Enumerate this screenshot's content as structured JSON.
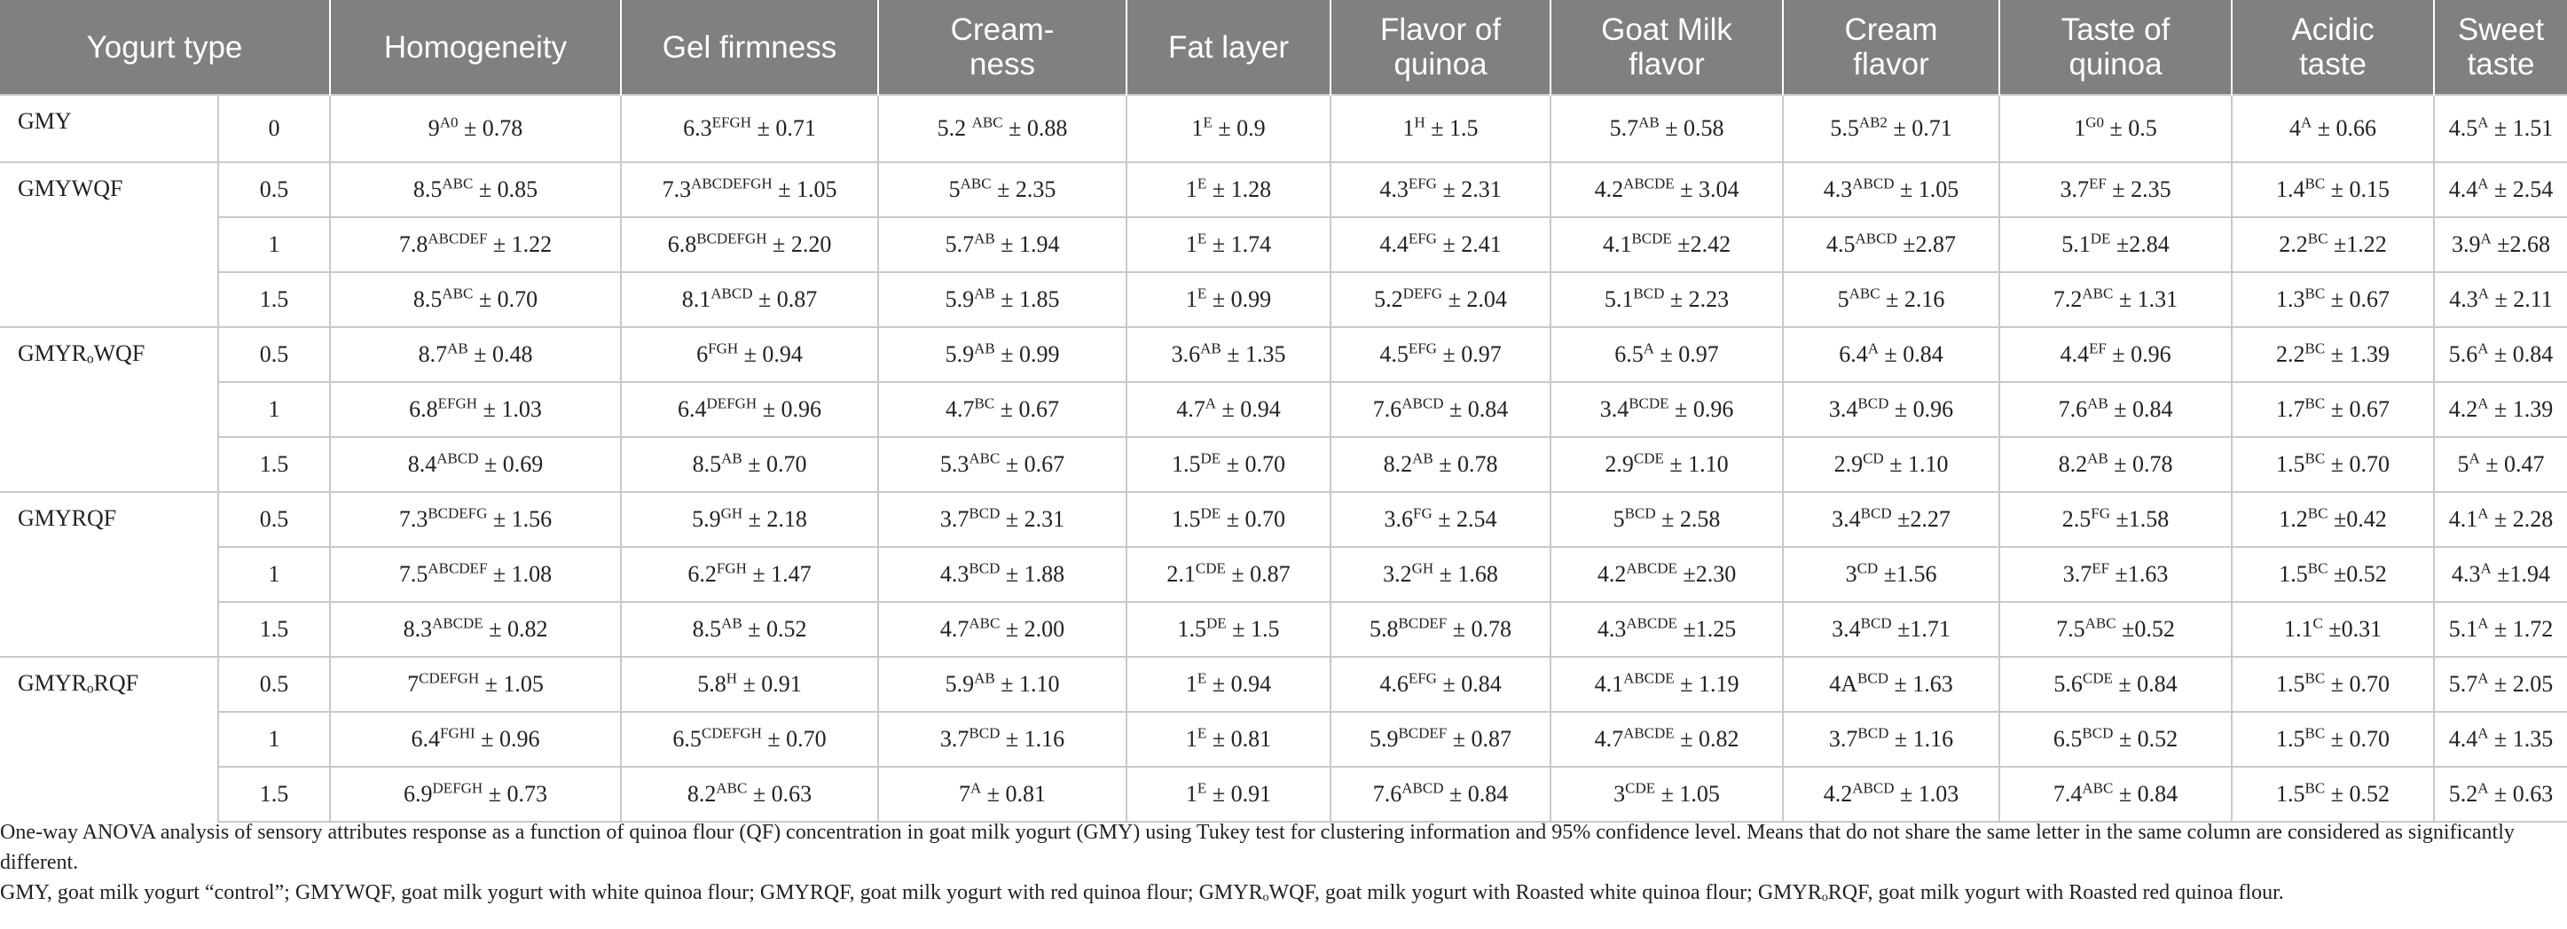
{
  "columns": [
    "Yogurt type",
    "Homogeneity",
    "Gel firmness",
    "Cream-\nness",
    "Fat layer",
    "Flavor of\nquinoa",
    "Goat Milk\nflavor",
    "Cream\nflavor",
    "Taste of\nquinoa",
    "Acidic\ntaste",
    "Sweet\ntaste"
  ],
  "groups": [
    {
      "type": "GMY",
      "rows": [
        {
          "conc": "0",
          "cells": [
            [
              "9",
              "A0",
              "± 0.78"
            ],
            [
              "6.3",
              "EFGH",
              "± 0.71"
            ],
            [
              "5.2 ",
              "ABC",
              "± 0.88"
            ],
            [
              "1",
              "E",
              "± 0.9"
            ],
            [
              "1",
              "H",
              "± 1.5"
            ],
            [
              "5.7",
              "AB",
              "± 0.58"
            ],
            [
              "5.5",
              "AB2",
              "± 0.71"
            ],
            [
              "1",
              "G0",
              "± 0.5"
            ],
            [
              "4",
              "A",
              "± 0.66"
            ],
            [
              "4.5",
              "A",
              "± 1.51"
            ]
          ]
        }
      ]
    },
    {
      "type": "GMYWQF",
      "rows": [
        {
          "conc": "0.5",
          "cells": [
            [
              "8.5",
              "ABC",
              "± 0.85"
            ],
            [
              "7.3",
              "ABCDEFGH",
              "± 1.05"
            ],
            [
              "5",
              "ABC",
              "± 2.35"
            ],
            [
              "1",
              "E",
              "± 1.28"
            ],
            [
              "4.3",
              "EFG",
              "± 2.31"
            ],
            [
              "4.2",
              "ABCDE",
              "± 3.04"
            ],
            [
              "4.3",
              "ABCD",
              "± 1.05"
            ],
            [
              "3.7",
              "EF",
              "± 2.35"
            ],
            [
              "1.4",
              "BC",
              "± 0.15"
            ],
            [
              "4.4",
              "A",
              "± 2.54"
            ]
          ]
        },
        {
          "conc": "1",
          "cells": [
            [
              "7.8",
              "ABCDEF",
              "± 1.22"
            ],
            [
              "6.8",
              "BCDEFGH",
              "± 2.20"
            ],
            [
              "5.7",
              "AB",
              "± 1.94"
            ],
            [
              "1",
              "E",
              "± 1.74"
            ],
            [
              "4.4",
              "EFG",
              "± 2.41"
            ],
            [
              "4.1",
              "BCDE",
              "±2.42"
            ],
            [
              "4.5",
              "ABCD",
              "±2.87"
            ],
            [
              "5.1",
              "DE",
              "±2.84"
            ],
            [
              "2.2",
              "BC",
              "±1.22"
            ],
            [
              "3.9",
              "A",
              "±2.68"
            ]
          ]
        },
        {
          "conc": "1.5",
          "cells": [
            [
              "8.5",
              "ABC",
              "± 0.70"
            ],
            [
              "8.1",
              "ABCD",
              "± 0.87"
            ],
            [
              "5.9",
              "AB",
              "± 1.85"
            ],
            [
              "1",
              "E",
              "± 0.99"
            ],
            [
              "5.2",
              "DEFG",
              "± 2.04"
            ],
            [
              "5.1",
              "BCD",
              "± 2.23"
            ],
            [
              "5",
              "ABC",
              "± 2.16"
            ],
            [
              "7.2",
              "ABC",
              "± 1.31"
            ],
            [
              "1.3",
              "BC",
              "± 0.67"
            ],
            [
              "4.3",
              "A",
              "± 2.11"
            ]
          ]
        }
      ]
    },
    {
      "type": "GMYRₒWQF",
      "rows": [
        {
          "conc": "0.5",
          "cells": [
            [
              "8.7",
              "AB",
              "± 0.48"
            ],
            [
              "6",
              "FGH",
              "± 0.94"
            ],
            [
              "5.9",
              "AB",
              "± 0.99"
            ],
            [
              "3.6",
              "AB",
              "± 1.35"
            ],
            [
              "4.5",
              "EFG",
              "± 0.97"
            ],
            [
              "6.5",
              "A",
              "± 0.97"
            ],
            [
              "6.4",
              "A",
              "± 0.84"
            ],
            [
              "4.4",
              "EF",
              "± 0.96"
            ],
            [
              "2.2",
              "BC",
              "± 1.39"
            ],
            [
              "5.6",
              "A",
              "± 0.84"
            ]
          ]
        },
        {
          "conc": "1",
          "cells": [
            [
              "6.8",
              "EFGH",
              "± 1.03"
            ],
            [
              "6.4",
              "DEFGH",
              "± 0.96"
            ],
            [
              "4.7",
              "BC",
              "± 0.67"
            ],
            [
              "4.7",
              "A",
              "± 0.94"
            ],
            [
              "7.6",
              "ABCD",
              "± 0.84"
            ],
            [
              "3.4",
              "BCDE",
              "± 0.96"
            ],
            [
              "3.4",
              "BCD",
              "± 0.96"
            ],
            [
              "7.6",
              "AB",
              "± 0.84"
            ],
            [
              "1.7",
              "BC",
              "± 0.67"
            ],
            [
              "4.2",
              "A",
              "± 1.39"
            ]
          ]
        },
        {
          "conc": "1.5",
          "cells": [
            [
              "8.4",
              "ABCD",
              "± 0.69"
            ],
            [
              "8.5",
              "AB",
              "± 0.70"
            ],
            [
              "5.3",
              "ABC",
              "± 0.67"
            ],
            [
              "1.5",
              "DE",
              "± 0.70"
            ],
            [
              "8.2",
              "AB",
              "± 0.78"
            ],
            [
              "2.9",
              "CDE",
              "± 1.10"
            ],
            [
              "2.9",
              "CD",
              "± 1.10"
            ],
            [
              "8.2",
              "AB",
              "± 0.78"
            ],
            [
              "1.5",
              "BC",
              "± 0.70"
            ],
            [
              "5",
              "A",
              "± 0.47"
            ]
          ]
        }
      ]
    },
    {
      "type": "GMYRQF",
      "rows": [
        {
          "conc": "0.5",
          "cells": [
            [
              "7.3",
              "BCDEFG",
              "± 1.56"
            ],
            [
              "5.9",
              "GH",
              "± 2.18"
            ],
            [
              "3.7",
              "BCD",
              "± 2.31"
            ],
            [
              "1.5",
              "DE",
              "± 0.70"
            ],
            [
              "3.6",
              "FG",
              "± 2.54"
            ],
            [
              "5",
              "BCD",
              "± 2.58"
            ],
            [
              "3.4",
              "BCD",
              "±2.27"
            ],
            [
              "2.5",
              "FG",
              "±1.58"
            ],
            [
              "1.2",
              "BC",
              "±0.42"
            ],
            [
              "4.1",
              "A",
              "± 2.28"
            ]
          ]
        },
        {
          "conc": "1",
          "cells": [
            [
              "7.5",
              "ABCDEF",
              "± 1.08"
            ],
            [
              "6.2",
              "FGH",
              "± 1.47"
            ],
            [
              "4.3",
              "BCD",
              "± 1.88"
            ],
            [
              "2.1",
              "CDE",
              "± 0.87"
            ],
            [
              "3.2",
              "GH",
              "± 1.68"
            ],
            [
              "4.2",
              "ABCDE",
              "±2.30"
            ],
            [
              "3",
              "CD",
              "±1.56"
            ],
            [
              "3.7",
              "EF",
              "±1.63"
            ],
            [
              "1.5",
              "BC",
              "±0.52"
            ],
            [
              "4.3",
              "A",
              "±1.94"
            ]
          ]
        },
        {
          "conc": "1.5",
          "cells": [
            [
              "8.3",
              "ABCDE",
              "± 0.82"
            ],
            [
              "8.5",
              "AB",
              "± 0.52"
            ],
            [
              "4.7",
              "ABC",
              "± 2.00"
            ],
            [
              "1.5",
              "DE",
              "± 1.5"
            ],
            [
              "5.8",
              "BCDEF",
              "± 0.78"
            ],
            [
              "4.3",
              "ABCDE",
              "±1.25"
            ],
            [
              "3.4",
              "BCD",
              "±1.71"
            ],
            [
              "7.5",
              "ABC",
              "±0.52"
            ],
            [
              "1.1",
              "C",
              "±0.31"
            ],
            [
              "5.1",
              "A",
              "± 1.72"
            ]
          ]
        }
      ]
    },
    {
      "type": "GMYRₒRQF",
      "rows": [
        {
          "conc": "0.5",
          "cells": [
            [
              "7",
              "CDEFGH",
              "± 1.05"
            ],
            [
              "5.8",
              "H",
              "± 0.91"
            ],
            [
              "5.9",
              "AB",
              "± 1.10"
            ],
            [
              "1",
              "E",
              "± 0.94"
            ],
            [
              "4.6",
              "EFG",
              "± 0.84"
            ],
            [
              "4.1",
              "ABCDE",
              "± 1.19"
            ],
            [
              "4A",
              "BCD",
              "± 1.63"
            ],
            [
              "5.6",
              "CDE",
              "± 0.84"
            ],
            [
              "1.5",
              "BC",
              "± 0.70"
            ],
            [
              "5.7",
              "A",
              "± 2.05"
            ]
          ]
        },
        {
          "conc": "1",
          "cells": [
            [
              "6.4",
              "FGHI",
              "± 0.96"
            ],
            [
              "6.5",
              "CDEFGH",
              "± 0.70"
            ],
            [
              "3.7",
              "BCD",
              "± 1.16"
            ],
            [
              "1",
              "E",
              "± 0.81"
            ],
            [
              "5.9",
              "BCDEF",
              "± 0.87"
            ],
            [
              "4.7",
              "ABCDE",
              "± 0.82"
            ],
            [
              "3.7",
              "BCD",
              "± 1.16"
            ],
            [
              "6.5",
              "BCD",
              "± 0.52"
            ],
            [
              "1.5",
              "BC",
              "± 0.70"
            ],
            [
              "4.4",
              "A",
              "± 1.35"
            ]
          ]
        },
        {
          "conc": "1.5",
          "cells": [
            [
              "6.9",
              "DEFGH",
              "± 0.73"
            ],
            [
              "8.2",
              "ABC",
              "± 0.63"
            ],
            [
              "7",
              "A",
              "± 0.81"
            ],
            [
              "1",
              "E",
              "± 0.91"
            ],
            [
              "7.6",
              "ABCD",
              "± 0.84"
            ],
            [
              "3",
              "CDE",
              "± 1.05"
            ],
            [
              "4.2",
              "ABCD",
              "± 1.03"
            ],
            [
              "7.4",
              "ABC",
              "± 0.84"
            ],
            [
              "1.5",
              "BC",
              "± 0.52"
            ],
            [
              "5.2",
              "A",
              "± 0.63"
            ]
          ]
        }
      ]
    }
  ],
  "footnotes": [
    "One-way ANOVA analysis of sensory attributes response as a function of quinoa flour (QF) concentration in goat milk yogurt (GMY) using Tukey test for clustering information and 95% confidence level. Means that do not share the same letter in the same column are considered as significantly different.",
    "GMY, goat milk yogurt “control”; GMYWQF, goat milk yogurt with white quinoa flour; GMYRQF, goat milk yogurt with red quinoa flour; GMYRₒWQF, goat milk yogurt with Roasted white quinoa flour; GMYRₒRQF, goat milk yogurt with Roasted red quinoa flour."
  ]
}
